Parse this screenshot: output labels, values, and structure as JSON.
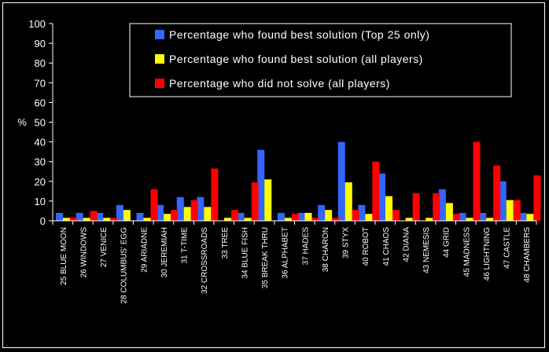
{
  "chart_data": {
    "type": "bar",
    "title": "",
    "xlabel": "",
    "ylabel": "%",
    "ylim": [
      0,
      100
    ],
    "yticks": [
      0,
      10,
      20,
      30,
      40,
      50,
      60,
      70,
      80,
      90,
      100
    ],
    "grid": false,
    "legend_position": "top-right",
    "categories": [
      "25 BLUE MOON",
      "26 WINDOWS",
      "27 VENICE",
      "28 COLUMBUS' EGG",
      "29 ARIADNE",
      "30 JEREMIAH",
      "31 T-TIME",
      "32 CROSSROADS",
      "33 TREE",
      "34 BLUE FISH",
      "35 BREAK THRU",
      "36 ALPHABET",
      "37 HADES",
      "38 CHARON",
      "39 STYX",
      "40 ROBOT",
      "41 CHAOS",
      "42 DIANA",
      "43 NEMESIS",
      "44 GRID",
      "45 MADNESS",
      "46 LIGHTNING",
      "47 CASTLE",
      "48 CHAMBERS"
    ],
    "series": [
      {
        "name": "Percentage who found best solution (Top 25 only)",
        "color": "#3366ff",
        "values": [
          4,
          4,
          4,
          8,
          4,
          8,
          12,
          12,
          0,
          4,
          36,
          4,
          4,
          8,
          40,
          8,
          24,
          0,
          0,
          16,
          4,
          4,
          20,
          4
        ]
      },
      {
        "name": "Percentage who found best solution (all players)",
        "color": "#ffff00",
        "values": [
          1.5,
          1.5,
          1.5,
          5.5,
          1.5,
          3.5,
          7,
          7,
          1.5,
          1.5,
          21,
          1.5,
          4,
          5.5,
          19.5,
          3.5,
          12.5,
          1.5,
          1.5,
          9,
          1.5,
          1.5,
          10.5,
          3.5
        ]
      },
      {
        "name": "Percentage who did not solve (all players)",
        "color": "#ff0000",
        "values": [
          1.5,
          5,
          1.5,
          0,
          16,
          5.5,
          10.5,
          26.5,
          5.5,
          19.5,
          0,
          3.5,
          1.5,
          1.5,
          5.5,
          30,
          5.5,
          14,
          14,
          3.5,
          40,
          28,
          10.5,
          23
        ]
      }
    ]
  }
}
